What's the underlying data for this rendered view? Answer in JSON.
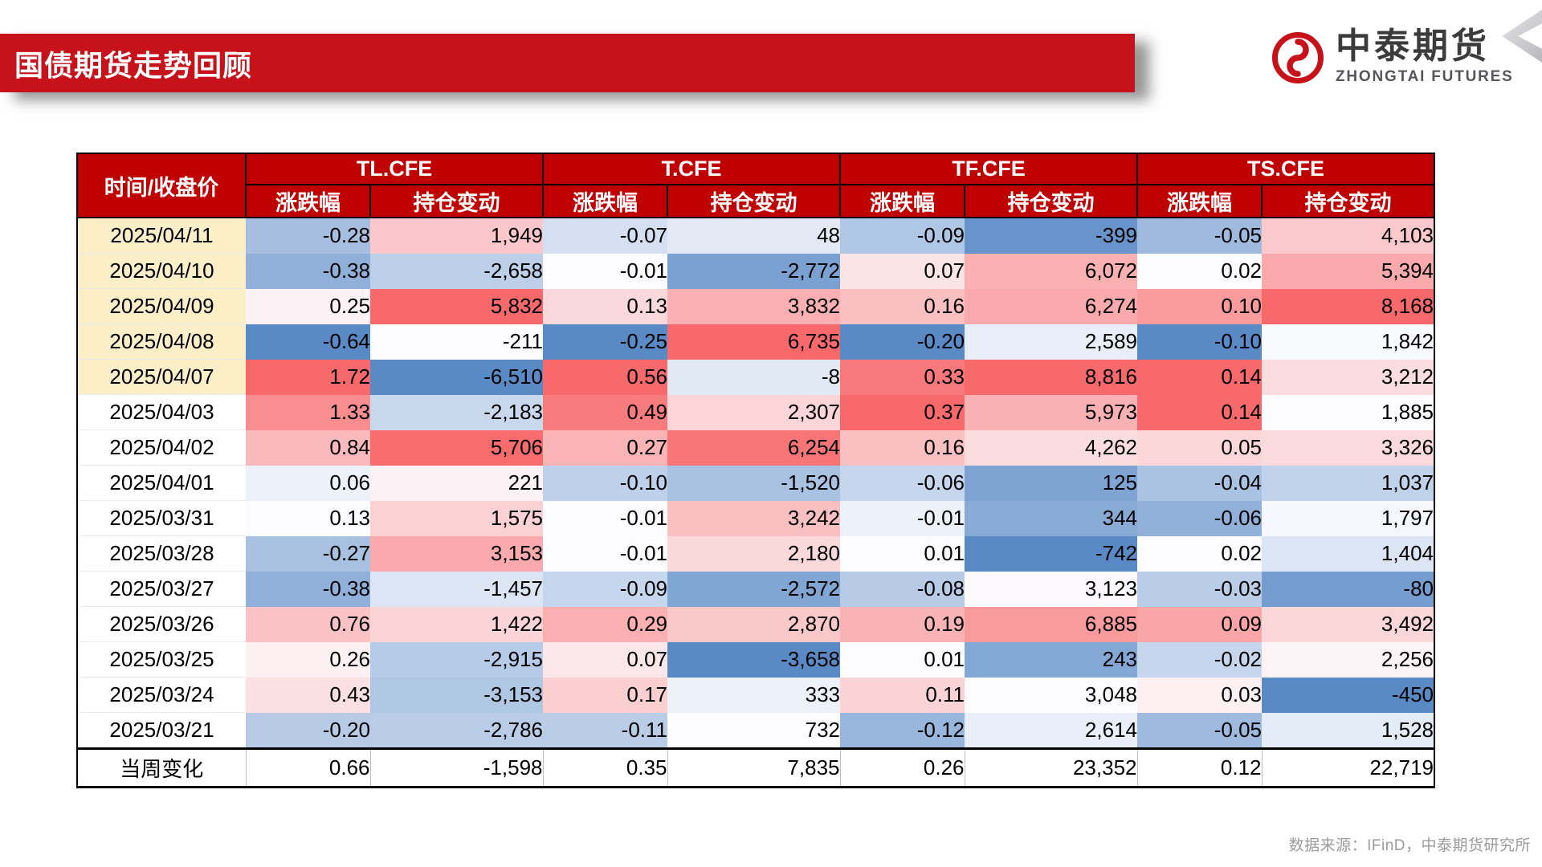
{
  "slide": {
    "title": "国债期货走势回顾",
    "logo": {
      "cn": "中泰期货",
      "en": "ZHONGTAI FUTURES"
    },
    "footer": "数据来源：IFinD，中泰期货研究所"
  },
  "colors": {
    "banner_red": "#C8121B",
    "header_red": "#C00000",
    "scale_min_blue": "#5A8AC6",
    "scale_mid_white": "#FCFCFF",
    "scale_max_red": "#F8696B",
    "date_highlight": "#FCEEC7"
  },
  "table": {
    "corner_header": "时间/收盘价",
    "contracts": [
      "TL.CFE",
      "T.CFE",
      "TF.CFE",
      "TS.CFE"
    ],
    "subheaders": [
      "涨跌幅",
      "持仓变动"
    ],
    "rows": [
      {
        "date": "2025/04/11",
        "highlight": true,
        "values": [
          -0.28,
          1949,
          -0.07,
          48,
          -0.09,
          -399,
          -0.05,
          4103
        ]
      },
      {
        "date": "2025/04/10",
        "highlight": true,
        "values": [
          -0.38,
          -2658,
          -0.01,
          -2772,
          0.07,
          6072,
          0.02,
          5394
        ]
      },
      {
        "date": "2025/04/09",
        "highlight": true,
        "values": [
          0.25,
          5832,
          0.13,
          3832,
          0.16,
          6274,
          0.1,
          8168
        ]
      },
      {
        "date": "2025/04/08",
        "highlight": true,
        "values": [
          -0.64,
          -211,
          -0.25,
          6735,
          -0.2,
          2589,
          -0.1,
          1842
        ]
      },
      {
        "date": "2025/04/07",
        "highlight": true,
        "values": [
          1.72,
          -6510,
          0.56,
          -8,
          0.33,
          8816,
          0.14,
          3212
        ]
      },
      {
        "date": "2025/04/03",
        "highlight": false,
        "values": [
          1.33,
          -2183,
          0.49,
          2307,
          0.37,
          5973,
          0.14,
          1885
        ]
      },
      {
        "date": "2025/04/02",
        "highlight": false,
        "values": [
          0.84,
          5706,
          0.27,
          6254,
          0.16,
          4262,
          0.05,
          3326
        ]
      },
      {
        "date": "2025/04/01",
        "highlight": false,
        "values": [
          0.06,
          221,
          -0.1,
          -1520,
          -0.06,
          125,
          -0.04,
          1037
        ]
      },
      {
        "date": "2025/03/31",
        "highlight": false,
        "values": [
          0.13,
          1575,
          -0.01,
          3242,
          -0.01,
          344,
          -0.06,
          1797
        ]
      },
      {
        "date": "2025/03/28",
        "highlight": false,
        "values": [
          -0.27,
          3153,
          -0.01,
          2180,
          0.01,
          -742,
          0.02,
          1404
        ]
      },
      {
        "date": "2025/03/27",
        "highlight": false,
        "values": [
          -0.38,
          -1457,
          -0.09,
          -2572,
          -0.08,
          3123,
          -0.03,
          -80
        ]
      },
      {
        "date": "2025/03/26",
        "highlight": false,
        "values": [
          0.76,
          1422,
          0.29,
          2870,
          0.19,
          6885,
          0.09,
          3492
        ]
      },
      {
        "date": "2025/03/25",
        "highlight": false,
        "values": [
          0.26,
          -2915,
          0.07,
          -3658,
          0.01,
          243,
          -0.02,
          2256
        ]
      },
      {
        "date": "2025/03/24",
        "highlight": false,
        "values": [
          0.43,
          -3153,
          0.17,
          333,
          0.11,
          3048,
          0.03,
          -450
        ]
      },
      {
        "date": "2025/03/21",
        "highlight": false,
        "values": [
          -0.2,
          -2786,
          -0.11,
          732,
          -0.12,
          2614,
          -0.05,
          1528
        ]
      }
    ],
    "totals": {
      "label": "当周变化",
      "values": [
        0.66,
        -1598,
        0.35,
        7835,
        0.26,
        23352,
        0.12,
        22719
      ]
    }
  }
}
